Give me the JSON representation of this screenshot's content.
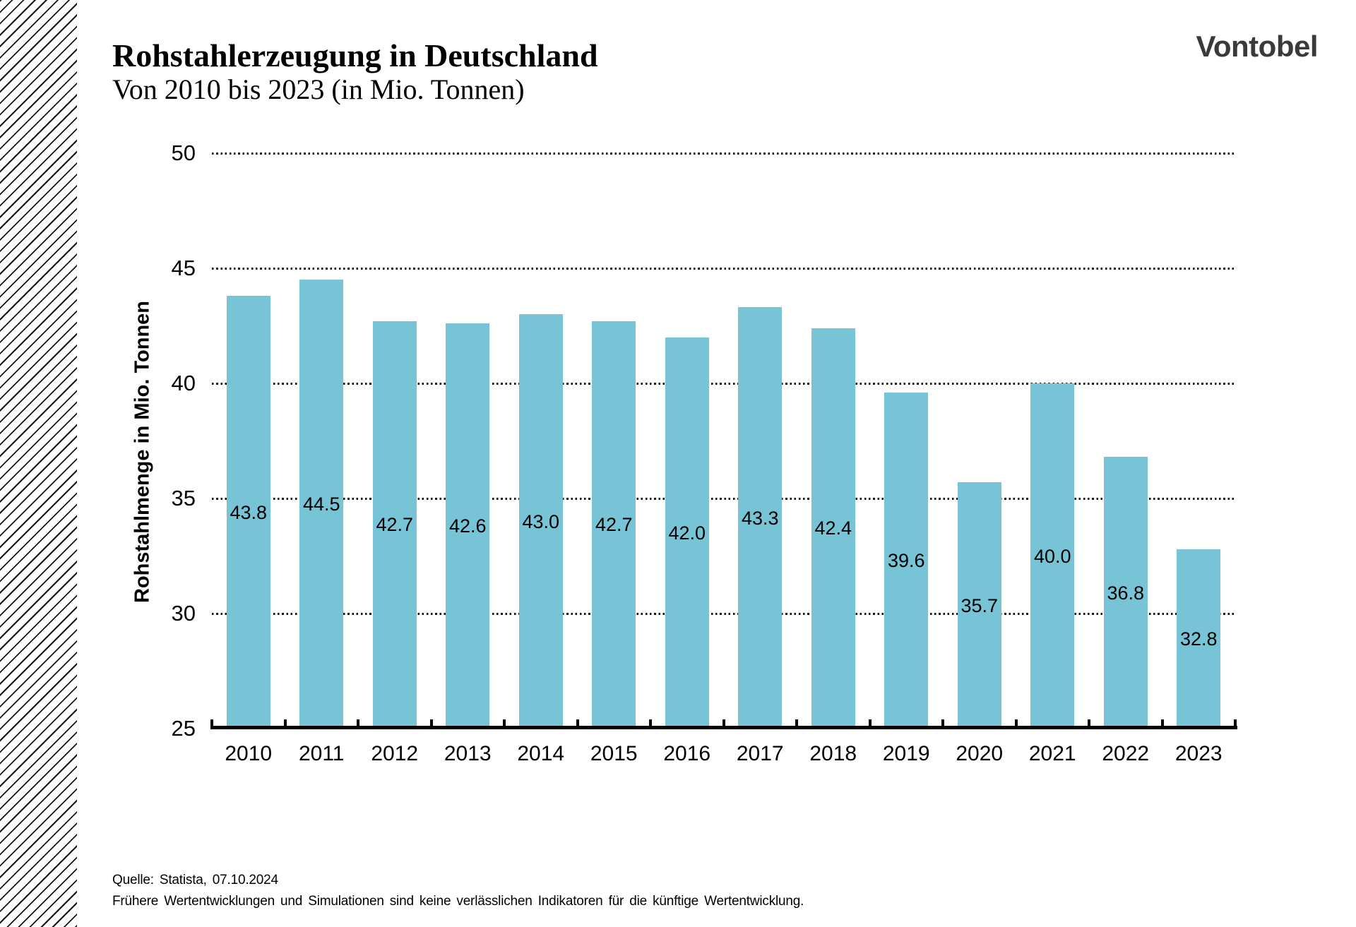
{
  "header": {
    "title": "Rohstahlerzeugung in Deutschland",
    "subtitle": "Von 2010 bis 2023 (in Mio. Tonnen)",
    "logo_text": "Vontobel"
  },
  "chart_data": {
    "type": "bar",
    "title": "Rohstahlerzeugung in Deutschland",
    "subtitle": "Von 2010 bis 2023 (in Mio. Tonnen)",
    "categories": [
      "2010",
      "2011",
      "2012",
      "2013",
      "2014",
      "2015",
      "2016",
      "2017",
      "2018",
      "2019",
      "2020",
      "2021",
      "2022",
      "2023"
    ],
    "values": [
      43.8,
      44.5,
      42.7,
      42.6,
      43.0,
      42.7,
      42.0,
      43.3,
      42.4,
      39.6,
      35.7,
      40.0,
      36.8,
      32.8
    ],
    "value_label_decimals": 1,
    "xlabel": "",
    "ylabel": "Rohstahlmenge in Mio. Tonnen",
    "ylim": [
      25,
      50
    ],
    "yticks": [
      25,
      30,
      35,
      40,
      45,
      50
    ],
    "grid": "horizontal-dotted",
    "legend": "none",
    "bar_color": "#76c4d5"
  },
  "footer": {
    "source": "Quelle: Statista, 07.10.2024",
    "disclaimer": "Frühere Wertentwicklungen und Simulationen sind keine verlässlichen Indikatoren für die künftige Wertentwicklung."
  },
  "colors": {
    "bar": "#76c4d5",
    "logo": "#3a3a39",
    "text": "#000000",
    "background": "#ffffff"
  }
}
